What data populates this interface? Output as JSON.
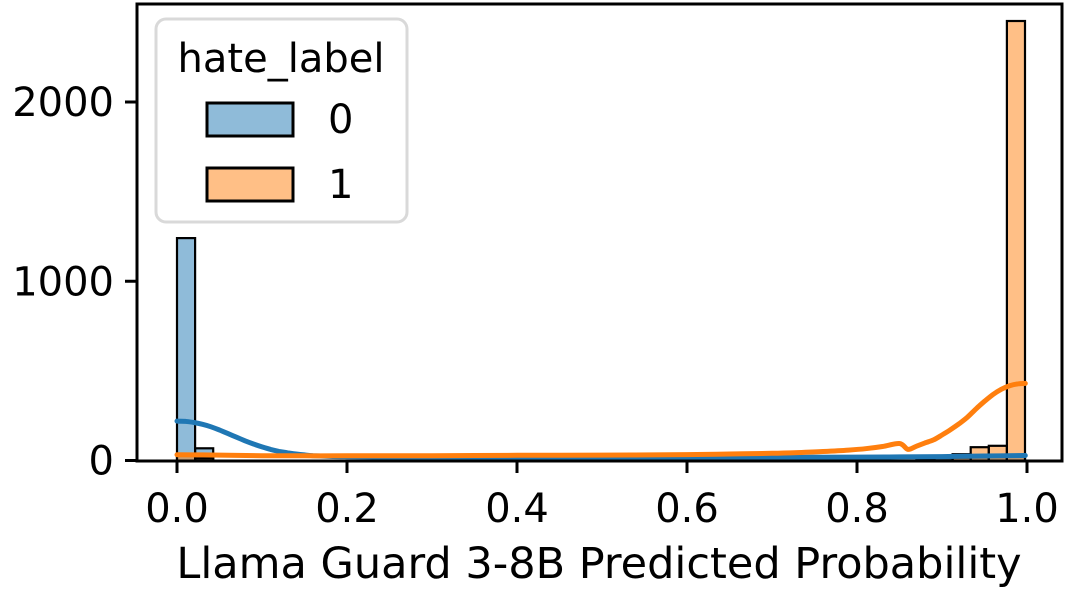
{
  "figure": {
    "background_color": "#ffffff"
  },
  "chart_data": {
    "type": "histogram",
    "subtype": "overlaid histograms with KDE curves",
    "title": "",
    "xlabel": "Llama Guard 3-8B Predicted Probability",
    "ylabel": "",
    "xlim": [
      -0.047,
      1.041
    ],
    "ylim": [
      0,
      2547
    ],
    "x_ticks": [
      0.0,
      0.2,
      0.4,
      0.6,
      0.8,
      1.0
    ],
    "x_tick_labels": [
      "0.0",
      "0.2",
      "0.4",
      "0.6",
      "0.8",
      "1.0"
    ],
    "y_ticks": [
      0,
      1000,
      2000
    ],
    "y_tick_labels": [
      "0",
      "1000",
      "2000"
    ],
    "grid": false,
    "bin_width": 0.0213,
    "legend": {
      "title": "hate_label",
      "position": "upper left",
      "border_color": "#d9d9d9"
    },
    "series": [
      {
        "name": "0",
        "label": "hate_label = 0",
        "color": "#1f77b4",
        "fill_alpha": 0.5,
        "edge_color": "#000000",
        "bars": [
          {
            "x0": 0.0,
            "x1": 0.0213,
            "count": 1241
          },
          {
            "x0": 0.0213,
            "x1": 0.0426,
            "count": 68
          },
          {
            "x0": 0.8699,
            "x1": 0.8912,
            "count": 10
          },
          {
            "x0": 0.8912,
            "x1": 0.9125,
            "count": 13
          },
          {
            "x0": 0.9125,
            "x1": 0.9338,
            "count": 15
          },
          {
            "x0": 0.9338,
            "x1": 0.9551,
            "count": 17
          },
          {
            "x0": 0.9551,
            "x1": 0.9764,
            "count": 19
          },
          {
            "x0": 0.9764,
            "x1": 0.9977,
            "count": 22
          }
        ],
        "kde": [
          [
            0.0,
            220
          ],
          [
            0.01,
            218
          ],
          [
            0.02,
            212
          ],
          [
            0.03,
            202
          ],
          [
            0.04,
            188
          ],
          [
            0.05,
            170
          ],
          [
            0.06,
            150
          ],
          [
            0.07,
            130
          ],
          [
            0.08,
            110
          ],
          [
            0.09,
            92
          ],
          [
            0.1,
            76
          ],
          [
            0.11,
            62
          ],
          [
            0.12,
            51
          ],
          [
            0.13,
            43
          ],
          [
            0.14,
            36
          ],
          [
            0.15,
            31
          ],
          [
            0.16,
            27
          ],
          [
            0.18,
            23
          ],
          [
            0.2,
            21
          ],
          [
            0.25,
            19
          ],
          [
            0.3,
            18
          ],
          [
            0.4,
            18
          ],
          [
            0.5,
            18
          ],
          [
            0.6,
            18
          ],
          [
            0.7,
            18
          ],
          [
            0.8,
            19
          ],
          [
            0.85,
            20
          ],
          [
            0.9,
            22
          ],
          [
            0.95,
            25
          ],
          [
            0.998,
            28
          ]
        ]
      },
      {
        "name": "1",
        "label": "hate_label = 1",
        "color": "#ff7f0e",
        "fill_alpha": 0.5,
        "edge_color": "#000000",
        "bars": [
          {
            "x0": 0.0,
            "x1": 0.0213,
            "count": 32
          },
          {
            "x0": 0.0213,
            "x1": 0.0426,
            "count": 12
          },
          {
            "x0": 0.9125,
            "x1": 0.9338,
            "count": 35
          },
          {
            "x0": 0.9338,
            "x1": 0.9551,
            "count": 74
          },
          {
            "x0": 0.9551,
            "x1": 0.9764,
            "count": 82
          },
          {
            "x0": 0.9764,
            "x1": 0.9977,
            "count": 2452
          }
        ],
        "kde": [
          [
            0.0,
            32
          ],
          [
            0.03,
            31
          ],
          [
            0.06,
            29
          ],
          [
            0.1,
            27
          ],
          [
            0.15,
            26
          ],
          [
            0.2,
            26
          ],
          [
            0.3,
            27
          ],
          [
            0.4,
            29
          ],
          [
            0.5,
            30
          ],
          [
            0.6,
            33
          ],
          [
            0.65,
            36
          ],
          [
            0.7,
            40
          ],
          [
            0.73,
            44
          ],
          [
            0.76,
            50
          ],
          [
            0.79,
            58
          ],
          [
            0.81,
            66
          ],
          [
            0.83,
            78
          ],
          [
            0.85,
            95
          ],
          [
            0.86,
            62
          ],
          [
            0.87,
            80
          ],
          [
            0.88,
            98
          ],
          [
            0.89,
            115
          ],
          [
            0.9,
            142
          ],
          [
            0.91,
            172
          ],
          [
            0.92,
            205
          ],
          [
            0.93,
            242
          ],
          [
            0.94,
            288
          ],
          [
            0.95,
            330
          ],
          [
            0.96,
            368
          ],
          [
            0.97,
            398
          ],
          [
            0.98,
            418
          ],
          [
            0.99,
            428
          ],
          [
            0.998,
            430
          ]
        ]
      }
    ]
  }
}
